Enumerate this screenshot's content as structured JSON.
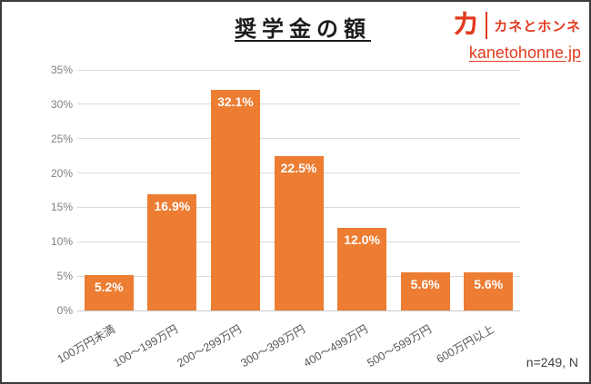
{
  "header": {
    "logo": {
      "mark": "カ",
      "brand": "カネとホンネ",
      "url": "kanetohonne.jp"
    }
  },
  "colors": {
    "accent_red": "#E13A1E",
    "bar_orange": "#EC7D32",
    "gridline": "#DADADA",
    "axis_text_y": "#7F7F7F",
    "axis_text_x": "#595959",
    "frame_border": "#3B3B3B"
  },
  "chart_data": {
    "type": "bar",
    "title": "奨学金の額",
    "categories": [
      "100万円未満",
      "100～199万円",
      "200～299万円",
      "300～399万円",
      "400～499万円",
      "500～599万円",
      "600万円以上"
    ],
    "values": [
      5.2,
      16.9,
      32.1,
      22.5,
      12.0,
      5.6,
      5.6
    ],
    "data_labels": [
      "5.2%",
      "16.9%",
      "32.1%",
      "22.5%",
      "12.0%",
      "5.6%",
      "5.6%"
    ],
    "xlabel": "",
    "ylabel": "",
    "ylim": [
      0,
      35
    ],
    "yticks": [
      0,
      5,
      10,
      15,
      20,
      25,
      30,
      35
    ],
    "ytick_labels": [
      "0%",
      "5%",
      "10%",
      "15%",
      "20%",
      "25%",
      "30%",
      "35%"
    ],
    "grid": "horizontal",
    "legend": "none",
    "bar_color": "#EC7D32",
    "label_color": "#FFFFFF",
    "note": "n=249, N"
  }
}
